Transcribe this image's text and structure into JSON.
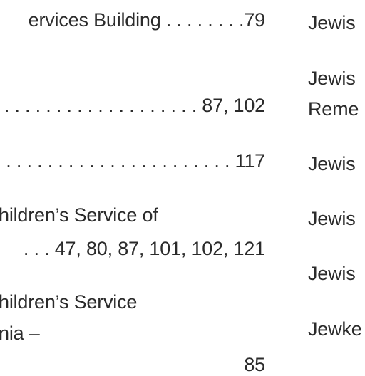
{
  "left_column": {
    "entries": [
      {
        "text": "ervices Building . . . . . . . .79"
      },
      {
        "text": ". . . . . . . . . . . . . . . . . . . . 87, 102"
      },
      {
        "text": ". . . . . . . . . . . . . . . . . . . . . . 117"
      },
      {
        "line1": "hildren’s Service of",
        "line2": ". . . 47, 80, 87, 101, 102, 121"
      },
      {
        "line1": "hildren’s Service",
        "line2": "nia –",
        "line3": "85"
      }
    ]
  },
  "right_column": {
    "entries": [
      {
        "text": "Jewis"
      },
      {
        "line1": "Jewis",
        "line2": "Reme"
      },
      {
        "text": "Jewis"
      },
      {
        "text": "Jewis"
      },
      {
        "text": "Jewis"
      },
      {
        "text": "Jewke"
      }
    ]
  }
}
